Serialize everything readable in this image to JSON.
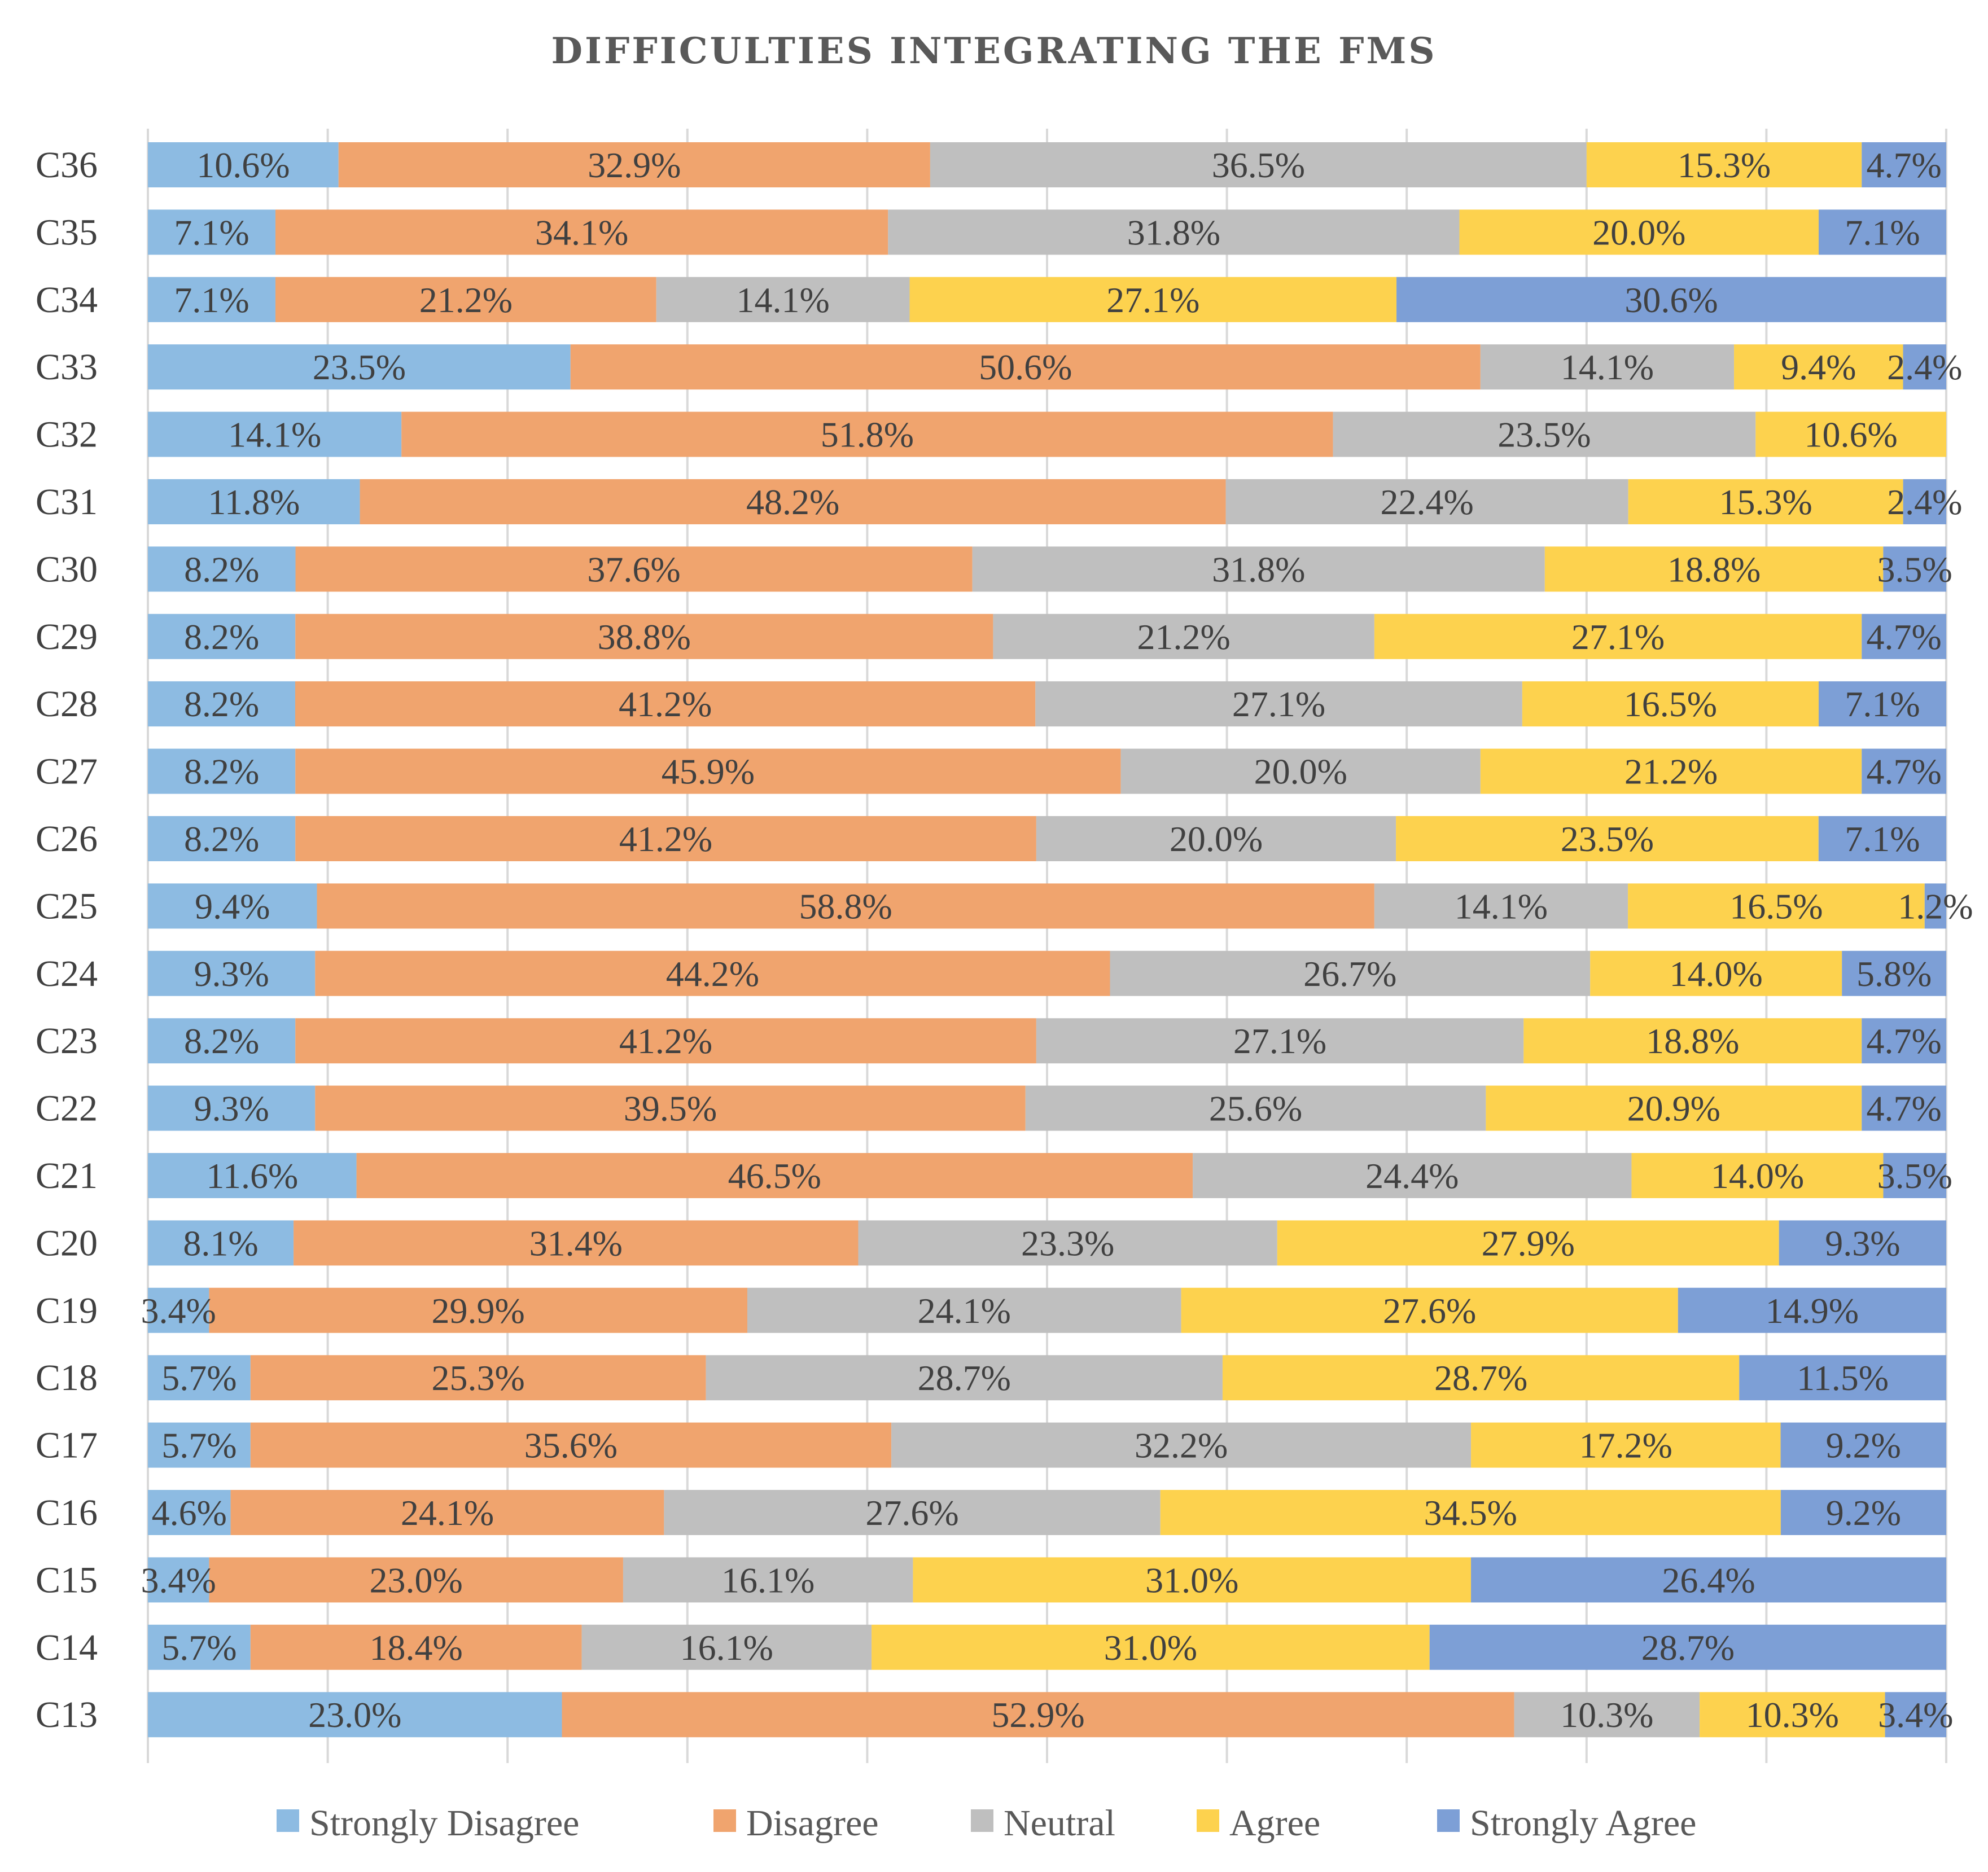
{
  "chart_data": {
    "type": "bar",
    "orientation": "horizontal",
    "stacked": "100%",
    "title": "DIFFICULTIES INTEGRATING THE FMS",
    "xlabel": "",
    "ylabel": "",
    "xlim": [
      0,
      100
    ],
    "grid": true,
    "legend_position": "bottom",
    "categories": [
      "C36",
      "C35",
      "C34",
      "C33",
      "C32",
      "C31",
      "C30",
      "C29",
      "C28",
      "C27",
      "C26",
      "C25",
      "C24",
      "C23",
      "C22",
      "C21",
      "C20",
      "C19",
      "C18",
      "C17",
      "C16",
      "C15",
      "C14",
      "C13"
    ],
    "series": [
      {
        "name": "Strongly Disagree",
        "color": "#8dbbe2",
        "values": [
          10.6,
          7.1,
          7.1,
          23.5,
          14.1,
          11.8,
          8.2,
          8.2,
          8.2,
          8.2,
          8.2,
          9.4,
          9.3,
          8.2,
          9.3,
          11.6,
          8.1,
          3.4,
          5.7,
          5.7,
          4.6,
          3.4,
          5.7,
          23.0
        ],
        "labels": [
          "10.6%",
          "7.1%",
          "7.1%",
          "23.5%",
          "14.1%",
          "11.8%",
          "8.2%",
          "8.2%",
          "8.2%",
          "8.2%",
          "8.2%",
          "9.4%",
          "9.3%",
          "8.2%",
          "9.3%",
          "11.6%",
          "8.1%",
          "3.4%",
          "5.7%",
          "5.7%",
          "4.6%",
          "3.4%",
          "5.7%",
          "23.0%"
        ]
      },
      {
        "name": "Disagree",
        "color": "#f0a46e",
        "values": [
          32.9,
          34.1,
          21.2,
          50.6,
          51.8,
          48.2,
          37.6,
          38.8,
          41.2,
          45.9,
          41.2,
          58.8,
          44.2,
          41.2,
          39.5,
          46.5,
          31.4,
          29.9,
          25.3,
          35.6,
          24.1,
          23.0,
          18.4,
          52.9
        ],
        "labels": [
          "32.9%",
          "34.1%",
          "21.2%",
          "50.6%",
          "51.8%",
          "48.2%",
          "37.6%",
          "38.8%",
          "41.2%",
          "45.9%",
          "41.2%",
          "58.8%",
          "44.2%",
          "41.2%",
          "39.5%",
          "46.5%",
          "31.4%",
          "29.9%",
          "25.3%",
          "35.6%",
          "24.1%",
          "23.0%",
          "18.4%",
          "52.9%"
        ]
      },
      {
        "name": "Neutral",
        "color": "#bfbfbf",
        "values": [
          36.5,
          31.8,
          14.1,
          14.1,
          23.5,
          22.4,
          31.8,
          21.2,
          27.1,
          20.0,
          20.0,
          14.1,
          26.7,
          27.1,
          25.6,
          24.4,
          23.3,
          24.1,
          28.7,
          32.2,
          27.6,
          16.1,
          16.1,
          10.3
        ],
        "labels": [
          "36.5%",
          "31.8%",
          "14.1%",
          "14.1%",
          "23.5%",
          "22.4%",
          "31.8%",
          "21.2%",
          "27.1%",
          "20.0%",
          "20.0%",
          "14.1%",
          "26.7%",
          "27.1%",
          "25.6%",
          "24.4%",
          "23.3%",
          "24.1%",
          "28.7%",
          "32.2%",
          "27.6%",
          "16.1%",
          "16.1%",
          "10.3%"
        ]
      },
      {
        "name": "Agree",
        "color": "#fdd24e",
        "values": [
          15.3,
          20.0,
          27.1,
          9.4,
          10.6,
          15.3,
          18.8,
          27.1,
          16.5,
          21.2,
          23.5,
          16.5,
          14.0,
          18.8,
          20.9,
          14.0,
          27.9,
          27.6,
          28.7,
          17.2,
          34.5,
          31.0,
          31.0,
          10.3
        ],
        "labels": [
          "15.3%",
          "20.0%",
          "27.1%",
          "9.4%",
          "10.6%",
          "15.3%",
          "18.8%",
          "27.1%",
          "16.5%",
          "21.2%",
          "23.5%",
          "16.5%",
          "14.0%",
          "18.8%",
          "20.9%",
          "14.0%",
          "27.9%",
          "27.6%",
          "28.7%",
          "17.2%",
          "34.5%",
          "31.0%",
          "31.0%",
          "10.3%"
        ]
      },
      {
        "name": "Strongly Agree",
        "color": "#7d9fd6",
        "values": [
          4.7,
          7.1,
          30.6,
          2.4,
          0,
          2.4,
          3.5,
          4.7,
          7.1,
          4.7,
          7.1,
          1.2,
          5.8,
          4.7,
          4.7,
          3.5,
          9.3,
          14.9,
          11.5,
          9.2,
          9.2,
          26.4,
          28.7,
          3.4
        ],
        "labels": [
          "4.7%",
          "7.1%",
          "30.6%",
          "2.4%",
          "",
          "2.4%",
          "3.5%",
          "4.7%",
          "7.1%",
          "4.7%",
          "7.1%",
          "1.2%",
          "5.8%",
          "4.7%",
          "4.7%",
          "3.5%",
          "9.3%",
          "14.9%",
          "11.5%",
          "9.2%",
          "9.2%",
          "26.4%",
          "28.7%",
          "3.4%"
        ]
      }
    ]
  }
}
